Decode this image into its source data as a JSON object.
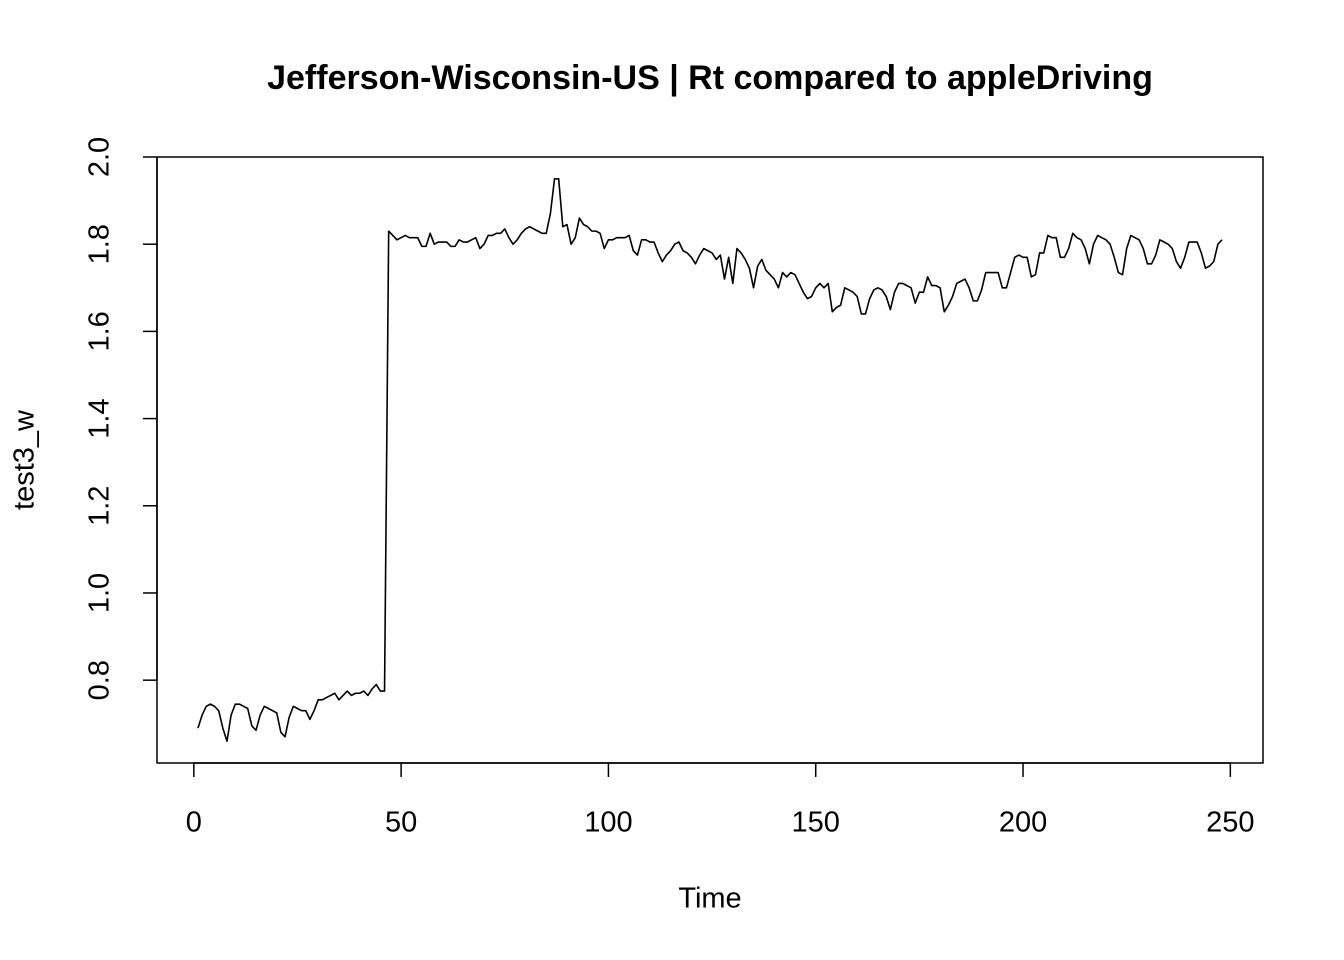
{
  "chart_data": {
    "type": "line",
    "title": "Jefferson-Wisconsin-US | Rt compared to appleDriving",
    "x_label": "Time",
    "y_label": "test3_w",
    "xlim": [
      -8.88,
      257.88
    ],
    "ylim": [
      0.61,
      2.0
    ],
    "xticks": [
      0,
      50,
      100,
      150,
      200,
      250
    ],
    "yticks": [
      0.8,
      {
        "value": 1,
        "label": "1.0"
      },
      1.2,
      1.4,
      1.6,
      1.8,
      {
        "value": 2,
        "label": "2.0"
      }
    ],
    "color": "#000000",
    "x": [
      1,
      2,
      3,
      4,
      5,
      6,
      7,
      8,
      9,
      10,
      11,
      12,
      13,
      14,
      15,
      16,
      17,
      18,
      19,
      20,
      21,
      22,
      23,
      24,
      25,
      26,
      27,
      28,
      29,
      30,
      31,
      32,
      33,
      34,
      35,
      36,
      37,
      38,
      39,
      40,
      41,
      42,
      43,
      44,
      45,
      46,
      47,
      48,
      49,
      50,
      51,
      52,
      53,
      54,
      55,
      56,
      57,
      58,
      59,
      60,
      61,
      62,
      63,
      64,
      65,
      66,
      67,
      68,
      69,
      70,
      71,
      72,
      73,
      74,
      75,
      76,
      77,
      78,
      79,
      80,
      81,
      82,
      83,
      84,
      85,
      86,
      87,
      88,
      89,
      90,
      91,
      92,
      93,
      94,
      95,
      96,
      97,
      98,
      99,
      100,
      101,
      102,
      103,
      104,
      105,
      106,
      107,
      108,
      109,
      110,
      111,
      112,
      113,
      114,
      115,
      116,
      117,
      118,
      119,
      120,
      121,
      122,
      123,
      124,
      125,
      126,
      127,
      128,
      129,
      130,
      131,
      132,
      133,
      134,
      135,
      136,
      137,
      138,
      139,
      140,
      141,
      142,
      143,
      144,
      145,
      146,
      147,
      148,
      149,
      150,
      151,
      152,
      153,
      154,
      155,
      156,
      157,
      158,
      159,
      160,
      161,
      162,
      163,
      164,
      165,
      166,
      167,
      168,
      169,
      170,
      171,
      172,
      173,
      174,
      175,
      176,
      177,
      178,
      179,
      180,
      181,
      182,
      183,
      184,
      185,
      186,
      187,
      188,
      189,
      190,
      191,
      192,
      193,
      194,
      195,
      196,
      197,
      198,
      199,
      200,
      201,
      202,
      203,
      204,
      205,
      206,
      207,
      208,
      209,
      210,
      211,
      212,
      213,
      214,
      215,
      216,
      217,
      218,
      219,
      220,
      221,
      222,
      223,
      224,
      225,
      226,
      227,
      228,
      229,
      230,
      231,
      232,
      233,
      234,
      235,
      236,
      237,
      238,
      239,
      240,
      241,
      242,
      243,
      244,
      245,
      246,
      247,
      248
    ],
    "values": [
      0.69,
      0.72,
      0.74,
      0.745,
      0.74,
      0.73,
      0.69,
      0.66,
      0.72,
      0.745,
      0.745,
      0.74,
      0.735,
      0.695,
      0.685,
      0.72,
      0.74,
      0.735,
      0.73,
      0.725,
      0.68,
      0.67,
      0.715,
      0.74,
      0.735,
      0.73,
      0.73,
      0.71,
      0.73,
      0.755,
      0.755,
      0.76,
      0.765,
      0.77,
      0.755,
      0.765,
      0.775,
      0.765,
      0.77,
      0.77,
      0.775,
      0.765,
      0.78,
      0.79,
      0.775,
      0.775,
      1.83,
      1.82,
      1.81,
      1.815,
      1.82,
      1.815,
      1.815,
      1.815,
      1.795,
      1.795,
      1.825,
      1.8,
      1.805,
      1.805,
      1.805,
      1.795,
      1.795,
      1.81,
      1.805,
      1.805,
      1.81,
      1.815,
      1.79,
      1.8,
      1.82,
      1.82,
      1.825,
      1.825,
      1.835,
      1.815,
      1.8,
      1.81,
      1.825,
      1.835,
      1.84,
      1.835,
      1.83,
      1.825,
      1.825,
      1.87,
      1.95,
      1.95,
      1.84,
      1.845,
      1.8,
      1.815,
      1.86,
      1.845,
      1.84,
      1.83,
      1.83,
      1.825,
      1.79,
      1.81,
      1.81,
      1.815,
      1.815,
      1.815,
      1.82,
      1.785,
      1.775,
      1.81,
      1.81,
      1.805,
      1.805,
      1.78,
      1.76,
      1.775,
      1.785,
      1.8,
      1.805,
      1.785,
      1.78,
      1.77,
      1.755,
      1.775,
      1.79,
      1.785,
      1.78,
      1.765,
      1.775,
      1.72,
      1.77,
      1.71,
      1.79,
      1.78,
      1.765,
      1.745,
      1.7,
      1.75,
      1.765,
      1.74,
      1.73,
      1.72,
      1.7,
      1.735,
      1.725,
      1.735,
      1.73,
      1.71,
      1.69,
      1.675,
      1.68,
      1.7,
      1.71,
      1.7,
      1.71,
      1.645,
      1.655,
      1.66,
      1.7,
      1.695,
      1.69,
      1.68,
      1.64,
      1.64,
      1.675,
      1.695,
      1.7,
      1.695,
      1.68,
      1.65,
      1.69,
      1.71,
      1.71,
      1.705,
      1.7,
      1.665,
      1.69,
      1.69,
      1.725,
      1.705,
      1.705,
      1.7,
      1.645,
      1.66,
      1.68,
      1.71,
      1.715,
      1.72,
      1.7,
      1.67,
      1.67,
      1.695,
      1.735,
      1.735,
      1.735,
      1.735,
      1.7,
      1.7,
      1.735,
      1.77,
      1.775,
      1.77,
      1.77,
      1.725,
      1.73,
      1.78,
      1.78,
      1.82,
      1.815,
      1.815,
      1.77,
      1.77,
      1.79,
      1.825,
      1.815,
      1.81,
      1.79,
      1.755,
      1.8,
      1.82,
      1.815,
      1.81,
      1.8,
      1.77,
      1.735,
      1.73,
      1.79,
      1.82,
      1.815,
      1.81,
      1.79,
      1.755,
      1.755,
      1.775,
      1.81,
      1.805,
      1.8,
      1.79,
      1.76,
      1.745,
      1.77,
      1.805,
      1.805,
      1.805,
      1.78,
      1.745,
      1.75,
      1.76,
      1.8,
      1.81
    ]
  }
}
